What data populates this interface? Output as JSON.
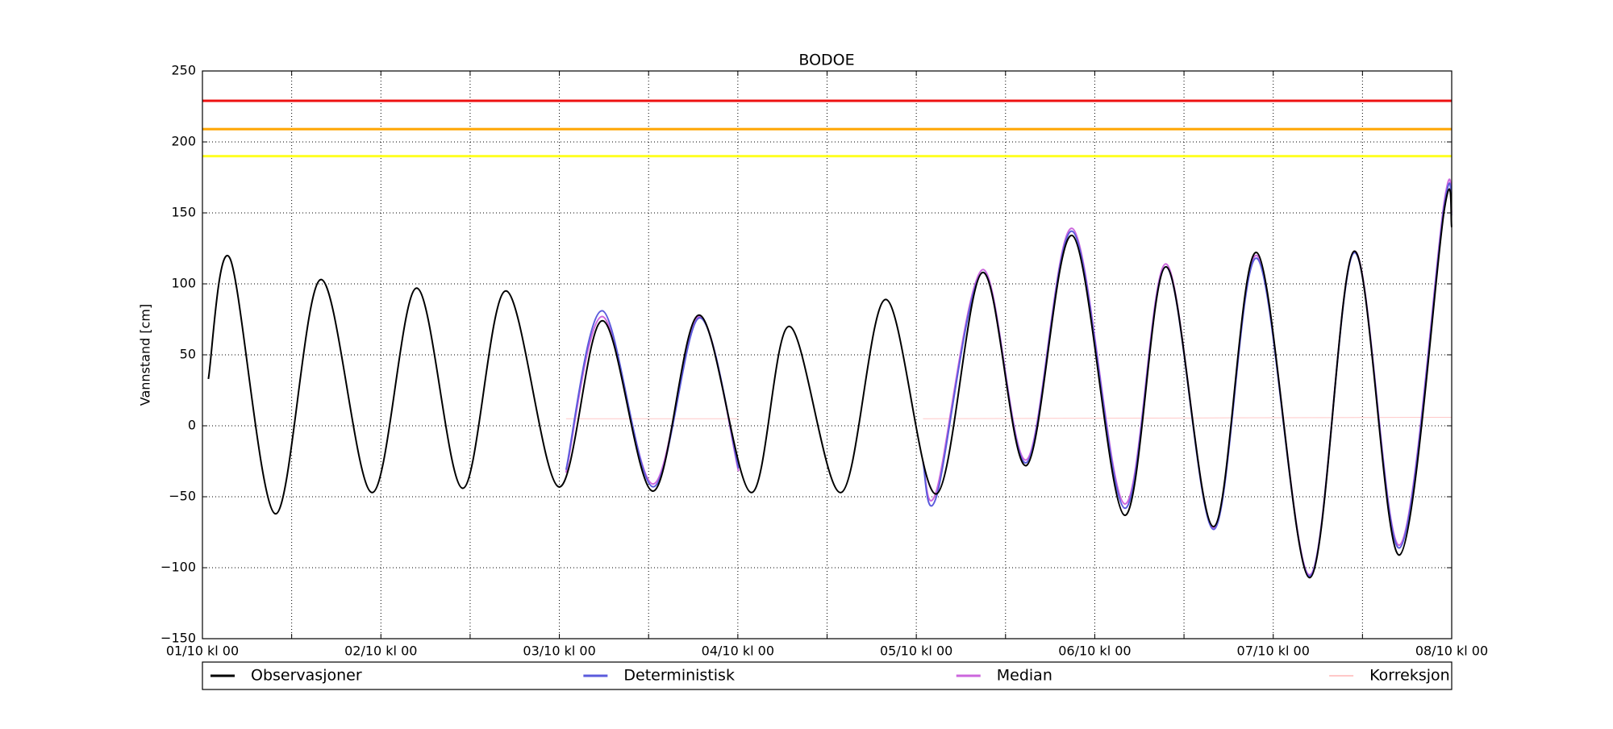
{
  "chart_data": {
    "type": "line",
    "title": "BODOE",
    "y_label": "Vannstand [cm]",
    "xlim": [
      0,
      168
    ],
    "ylim": [
      -150,
      250
    ],
    "xticks": [
      {
        "value": 0,
        "label": "01/10 kl 00"
      },
      {
        "value": 24,
        "label": "02/10 kl 00"
      },
      {
        "value": 48,
        "label": "03/10 kl 00"
      },
      {
        "value": 72,
        "label": "04/10 kl 00"
      },
      {
        "value": 96,
        "label": "05/10 kl 00"
      },
      {
        "value": 120,
        "label": "06/10 kl 00"
      },
      {
        "value": 144,
        "label": "07/10 kl 00"
      },
      {
        "value": 168,
        "label": "08/10 kl 00"
      }
    ],
    "minor_xticks": [
      12,
      36,
      60,
      84,
      108,
      132,
      156
    ],
    "yticks": [
      {
        "value": -150,
        "label": "−150"
      },
      {
        "value": -100,
        "label": "−100"
      },
      {
        "value": -50,
        "label": "−50"
      },
      0,
      50,
      100,
      150,
      200,
      250
    ],
    "grid": true,
    "legend": "bottom",
    "reference_lines": [
      {
        "value": 229,
        "color": "#ee1111"
      },
      {
        "value": 209,
        "color": "#ffa500"
      },
      {
        "value": 190,
        "color": "#ffff22"
      }
    ],
    "series": [
      {
        "name": "Observasjoner",
        "color": "#000000",
        "width": 2,
        "x": [
          0.8,
          3.7,
          9.8,
          15.9,
          22.8,
          28.8,
          35,
          40.8,
          47.9,
          53.8,
          60.6,
          66.8,
          73.8,
          78.9,
          85.9,
          91.9,
          98.7,
          104.9,
          110.8,
          117,
          124,
          129.6,
          136,
          141.8,
          148.9,
          154.9,
          161,
          167,
          168
        ],
        "values": [
          33,
          118,
          -62,
          103,
          -47,
          97,
          -44,
          95,
          -43,
          74,
          -46,
          78,
          -47,
          70,
          -47,
          89,
          -48,
          108,
          -28,
          134,
          -63,
          112,
          -71,
          122,
          -107,
          123,
          -91,
          152,
          140
        ]
      },
      {
        "name": "Deterministisk",
        "color": "#5b5bdc",
        "width": 2,
        "x": [
          48.9,
          53.8,
          60.6,
          66.8,
          72.1,
          null,
          96.9,
          98.7,
          104.9,
          110.8,
          117,
          124,
          129.6,
          136,
          141.8,
          148.9,
          154.9,
          161,
          167,
          168
        ],
        "values": [
          -31,
          81,
          -43,
          76,
          -30,
          null,
          -26,
          -50,
          108,
          -26,
          137,
          -58,
          112,
          -73,
          118,
          -106,
          122,
          -86,
          155,
          148
        ]
      },
      {
        "name": "Median",
        "color": "#cc66dd",
        "width": 2,
        "x": [
          48.9,
          53.8,
          60.6,
          66.8,
          72.1,
          null,
          96.9,
          98.7,
          104.9,
          110.8,
          117,
          124,
          129.6,
          136,
          141.8,
          148.9,
          154.9,
          161,
          167,
          168
        ],
        "values": [
          -33,
          77,
          -41,
          77,
          -32,
          null,
          -25,
          -46,
          110,
          -24,
          139,
          -55,
          114,
          -72,
          120,
          -105,
          123,
          -84,
          158,
          150
        ]
      },
      {
        "name": "Korreksjon",
        "color": "#ffc8c8",
        "width": 1,
        "x": [
          48.9,
          72.1,
          null,
          96.9,
          168
        ],
        "values": [
          5,
          5,
          null,
          5,
          6
        ]
      }
    ]
  }
}
